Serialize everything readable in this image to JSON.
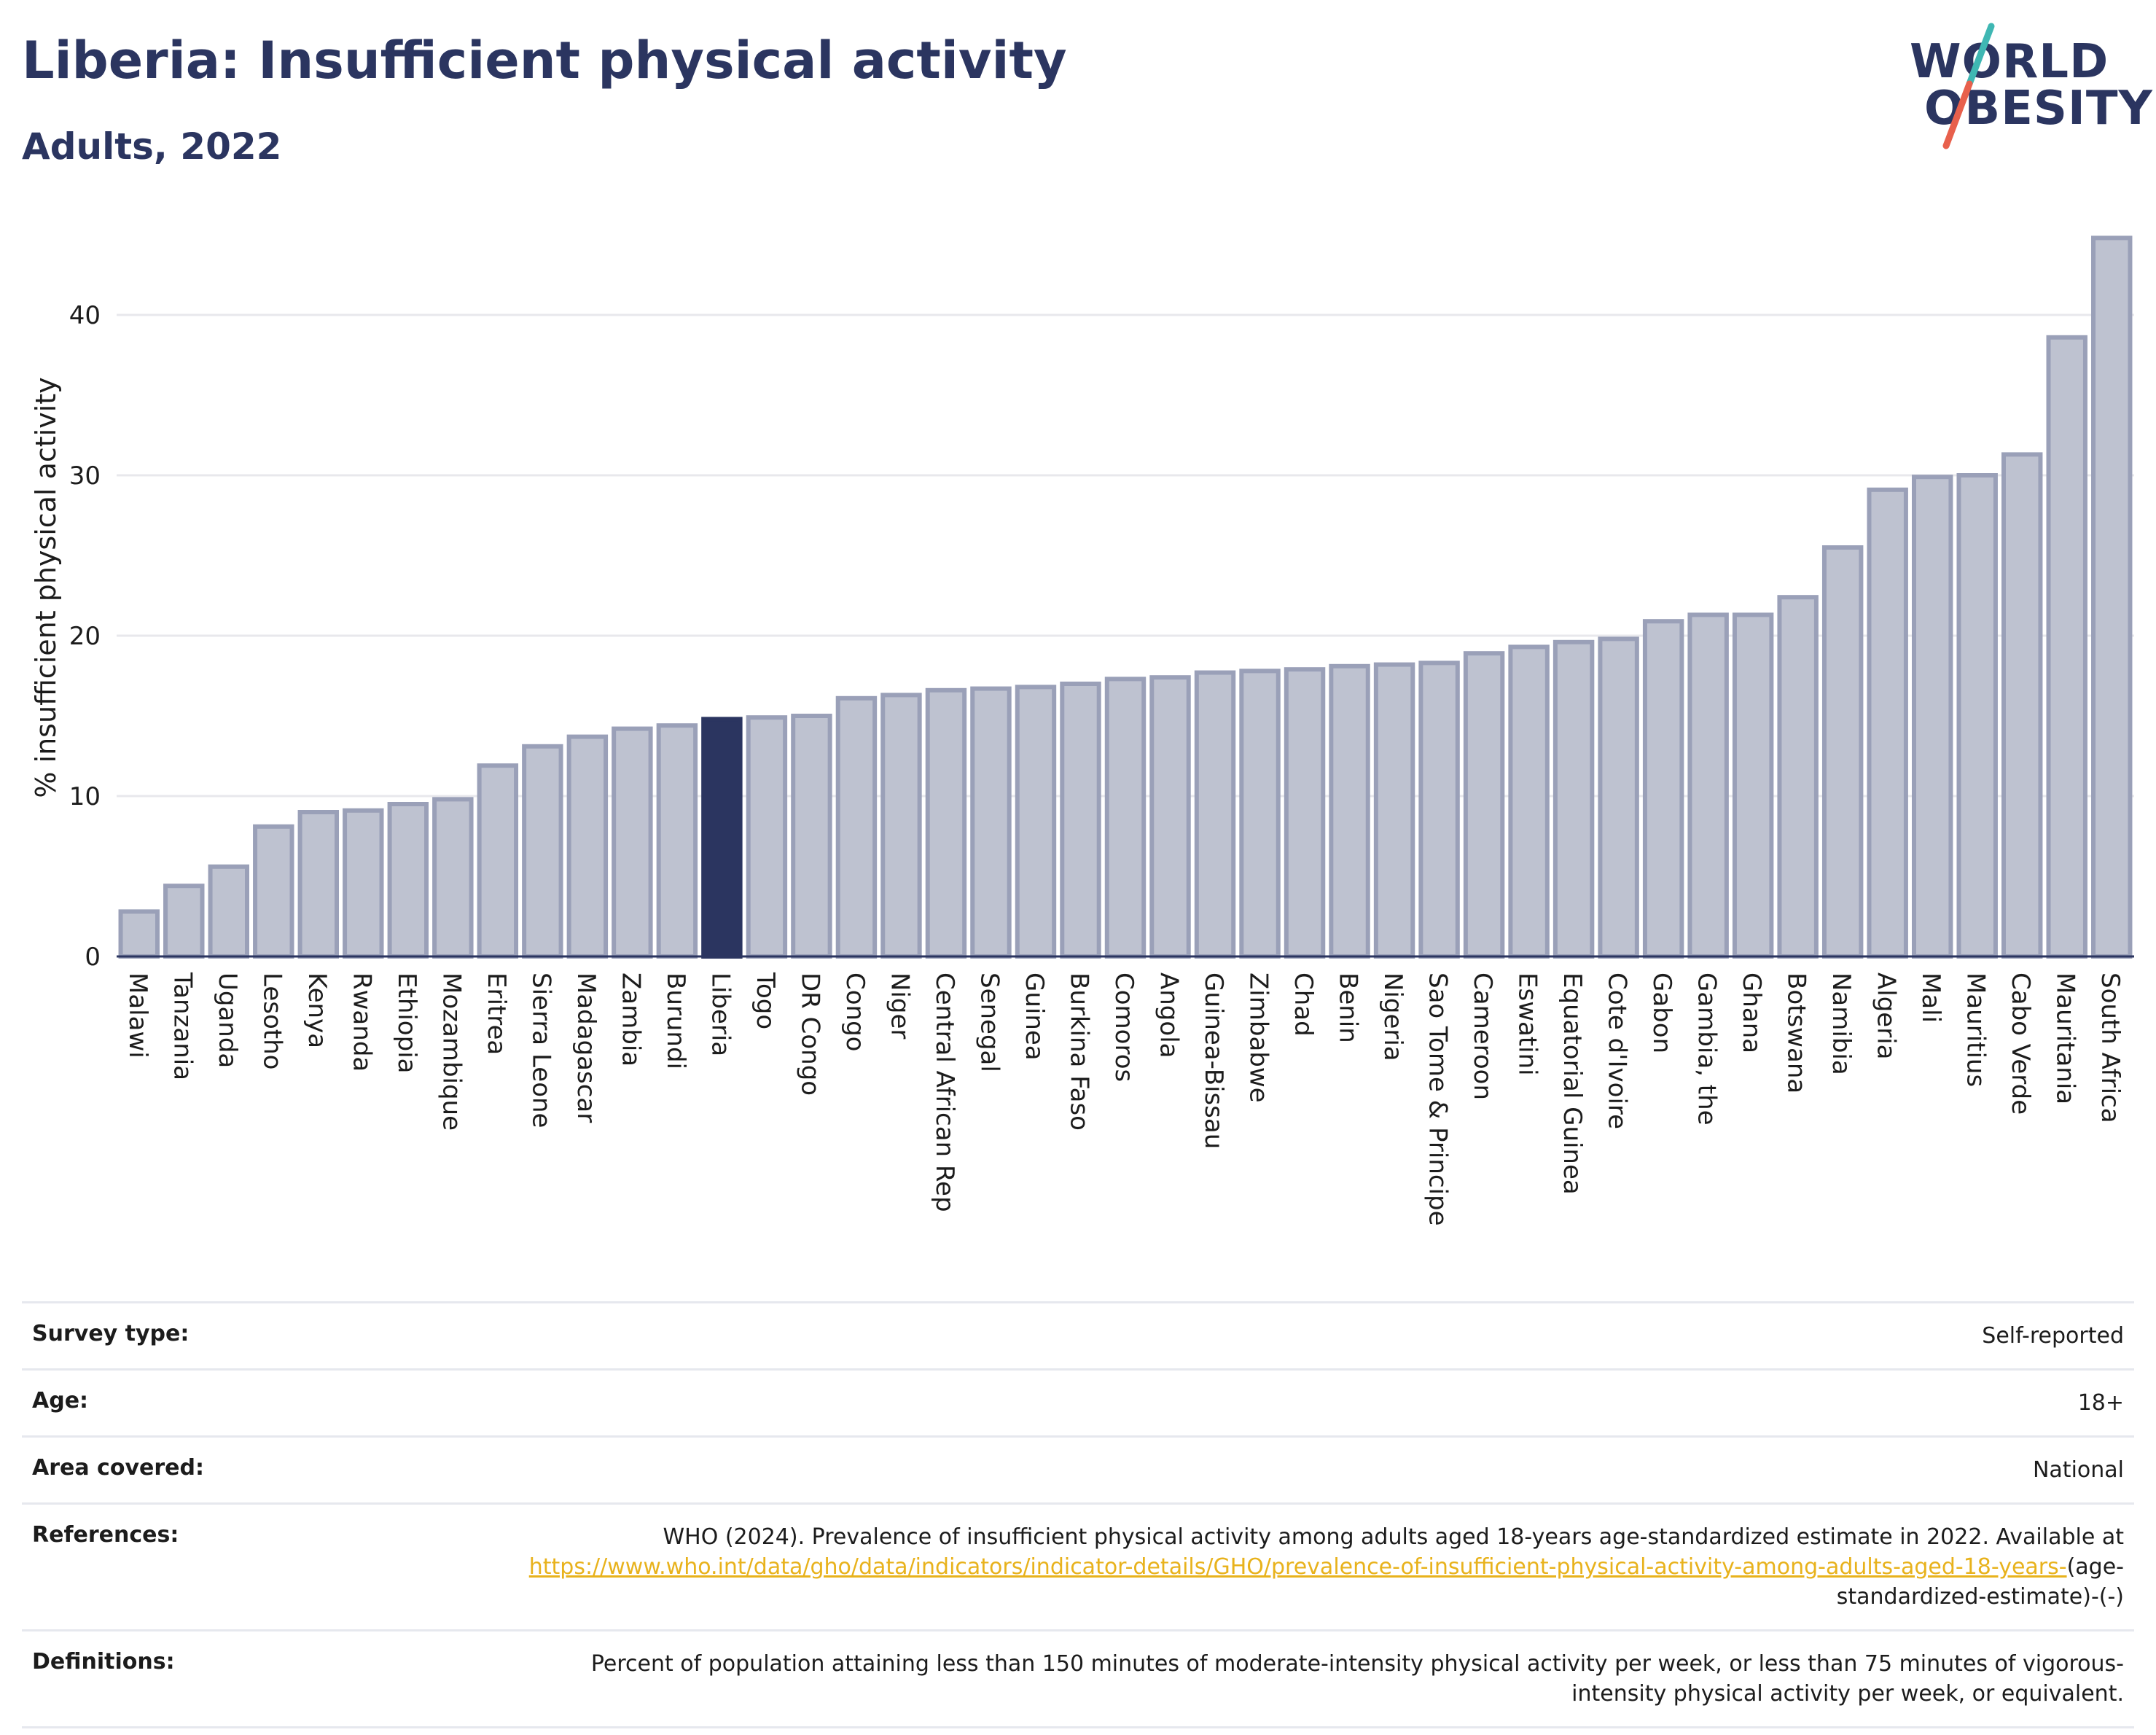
{
  "header": {
    "title": "Liberia: Insufficient physical activity",
    "subtitle": "Adults, 2022"
  },
  "logo": {
    "line1": "WORLD",
    "line2": "OBESITY",
    "slash_colors": [
      "#3fb7b3",
      "#e8604c"
    ]
  },
  "colors": {
    "bar": "#bec2d0",
    "bar_border": "#9aa0b8",
    "highlight": "#2b3560",
    "grid": "#e8e8ec",
    "axis": "#2b3560",
    "link": "#e8b21c",
    "title": "#2b3560"
  },
  "chart_data": {
    "type": "bar",
    "title": "",
    "xlabel": "",
    "ylabel": "% insufficient physical activity",
    "ylim": [
      0,
      46
    ],
    "yticks": [
      0,
      10,
      20,
      30,
      40
    ],
    "grid": true,
    "highlight": "Liberia",
    "categories": [
      "Malawi",
      "Tanzania",
      "Uganda",
      "Lesotho",
      "Kenya",
      "Rwanda",
      "Ethiopia",
      "Mozambique",
      "Eritrea",
      "Sierra Leone",
      "Madagascar",
      "Zambia",
      "Burundi",
      "Liberia",
      "Togo",
      "DR Congo",
      "Congo",
      "Niger",
      "Central African Rep",
      "Senegal",
      "Guinea",
      "Burkina Faso",
      "Comoros",
      "Angola",
      "Guinea-Bissau",
      "Zimbabwe",
      "Chad",
      "Benin",
      "Nigeria",
      "Sao Tome & Principe",
      "Cameroon",
      "Eswatini",
      "Equatorial Guinea",
      "Cote d'Ivoire",
      "Gabon",
      "Gambia, the",
      "Ghana",
      "Botswana",
      "Namibia",
      "Algeria",
      "Mali",
      "Mauritius",
      "Cabo Verde",
      "Mauritania",
      "South Africa"
    ],
    "values": [
      2.8,
      4.4,
      5.6,
      8.1,
      9.0,
      9.1,
      9.5,
      9.8,
      11.9,
      13.1,
      13.7,
      14.2,
      14.4,
      14.8,
      14.9,
      15.0,
      16.1,
      16.3,
      16.6,
      16.7,
      16.8,
      17.0,
      17.3,
      17.4,
      17.7,
      17.8,
      17.9,
      18.1,
      18.2,
      18.3,
      18.9,
      19.3,
      19.6,
      19.8,
      20.9,
      21.3,
      21.3,
      22.4,
      25.5,
      29.1,
      29.9,
      30.0,
      31.3,
      38.6,
      44.8
    ]
  },
  "info": {
    "survey_type": {
      "label": "Survey type:",
      "value": "Self-reported"
    },
    "age": {
      "label": "Age:",
      "value": "18+"
    },
    "area": {
      "label": "Area covered:",
      "value": "National"
    },
    "references": {
      "label": "References:",
      "text": "WHO (2024). Prevalence of insufficient physical activity among adults aged 18-years age-standardized estimate in 2022. Available at",
      "link": "https://www.who.int/data/gho/data/indicators/indicator-details/GHO/prevalence-of-insufficient-physical-activity-among-adults-aged-18-years-",
      "suffix": "(age-standardized-estimate)-(-)"
    },
    "definitions": {
      "label": "Definitions:",
      "value": "Percent of population attaining less than 150 minutes of moderate-intensity physical activity per week, or less than 75 minutes of vigorous-intensity physical activity per week, or equivalent."
    }
  }
}
